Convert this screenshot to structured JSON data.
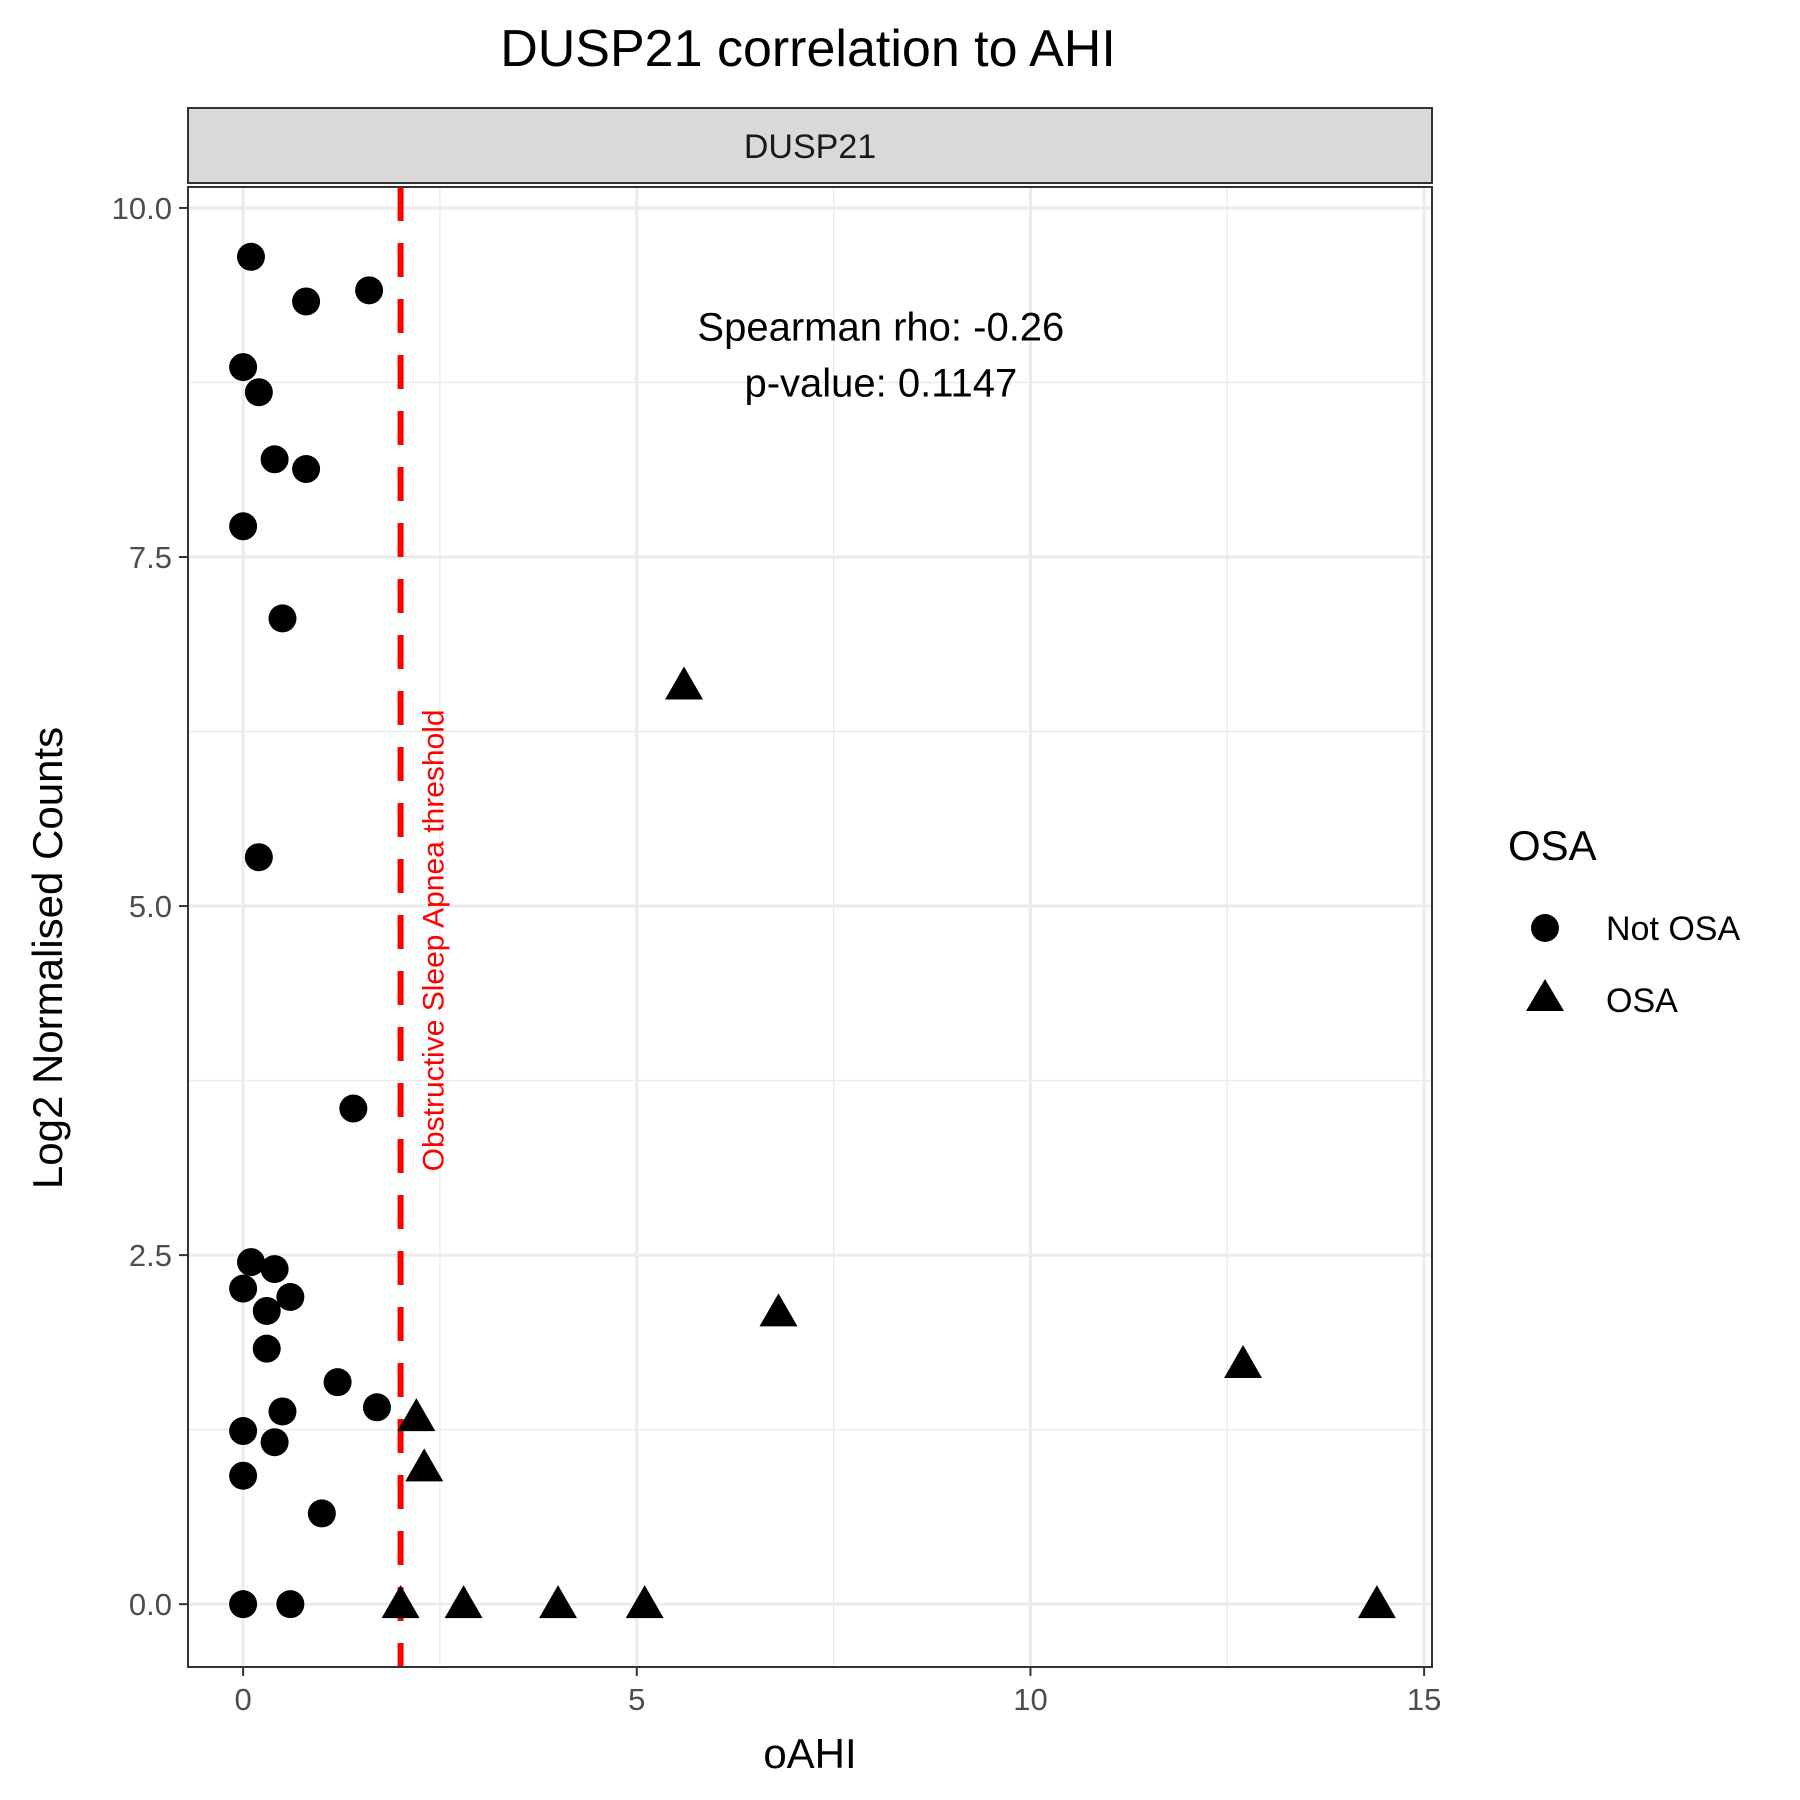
{
  "chart_data": {
    "type": "scatter",
    "title": "DUSP21 correlation to AHI",
    "facet_label": "DUSP21",
    "xlabel": "oAHI",
    "ylabel": "Log2 Normalised Counts",
    "xlim": [
      -0.7,
      15.1
    ],
    "ylim": [
      -0.45,
      10.15
    ],
    "x_ticks": [
      0,
      5,
      10,
      15
    ],
    "x_tick_labels": [
      "0",
      "5",
      "10",
      "15"
    ],
    "y_ticks": [
      0,
      2.5,
      5,
      7.5,
      10
    ],
    "y_tick_labels": [
      "0.0",
      "2.5",
      "5.0",
      "7.5",
      "10.0"
    ],
    "grid": true,
    "legend": {
      "title": "OSA",
      "position": "right",
      "entries": [
        {
          "label": "Not OSA",
          "shape": "circle"
        },
        {
          "label": "OSA",
          "shape": "triangle"
        }
      ]
    },
    "annotation": {
      "line1": "Spearman rho: -0.26",
      "line2": "p-value: 0.1147",
      "x": 8.1,
      "y1": 9.05,
      "y2": 8.65
    },
    "threshold": {
      "x": 2,
      "label": "Obstructive Sleep Apnea threshold",
      "color": "#ff0000",
      "label_y": 3.1
    },
    "series": [
      {
        "name": "Not OSA",
        "shape": "circle",
        "points": [
          {
            "x": 0.1,
            "y": 9.65
          },
          {
            "x": 0.8,
            "y": 9.33
          },
          {
            "x": 1.6,
            "y": 9.41
          },
          {
            "x": 0.0,
            "y": 8.86
          },
          {
            "x": 0.2,
            "y": 8.68
          },
          {
            "x": 0.4,
            "y": 8.2
          },
          {
            "x": 0.8,
            "y": 8.13
          },
          {
            "x": 0.0,
            "y": 7.72
          },
          {
            "x": 0.5,
            "y": 7.06
          },
          {
            "x": 0.2,
            "y": 5.35
          },
          {
            "x": 1.4,
            "y": 3.55
          },
          {
            "x": 0.1,
            "y": 2.45
          },
          {
            "x": 0.4,
            "y": 2.4
          },
          {
            "x": 0.0,
            "y": 2.26
          },
          {
            "x": 0.6,
            "y": 2.2
          },
          {
            "x": 0.3,
            "y": 2.1
          },
          {
            "x": 0.3,
            "y": 1.83
          },
          {
            "x": 1.2,
            "y": 1.59
          },
          {
            "x": 1.7,
            "y": 1.41
          },
          {
            "x": 0.5,
            "y": 1.38
          },
          {
            "x": 0.0,
            "y": 1.24
          },
          {
            "x": 0.4,
            "y": 1.16
          },
          {
            "x": 0.0,
            "y": 0.92
          },
          {
            "x": 1.0,
            "y": 0.65
          },
          {
            "x": 0.0,
            "y": 0.0
          },
          {
            "x": 0.6,
            "y": 0.0
          }
        ]
      },
      {
        "name": "OSA",
        "shape": "triangle",
        "points": [
          {
            "x": 5.6,
            "y": 6.58
          },
          {
            "x": 6.8,
            "y": 2.09
          },
          {
            "x": 12.7,
            "y": 1.72
          },
          {
            "x": 2.2,
            "y": 1.34
          },
          {
            "x": 2.3,
            "y": 0.98
          },
          {
            "x": 2.0,
            "y": 0.0
          },
          {
            "x": 2.8,
            "y": 0.0
          },
          {
            "x": 4.0,
            "y": 0.0
          },
          {
            "x": 5.1,
            "y": 0.0
          },
          {
            "x": 14.4,
            "y": 0.0
          }
        ]
      }
    ]
  }
}
